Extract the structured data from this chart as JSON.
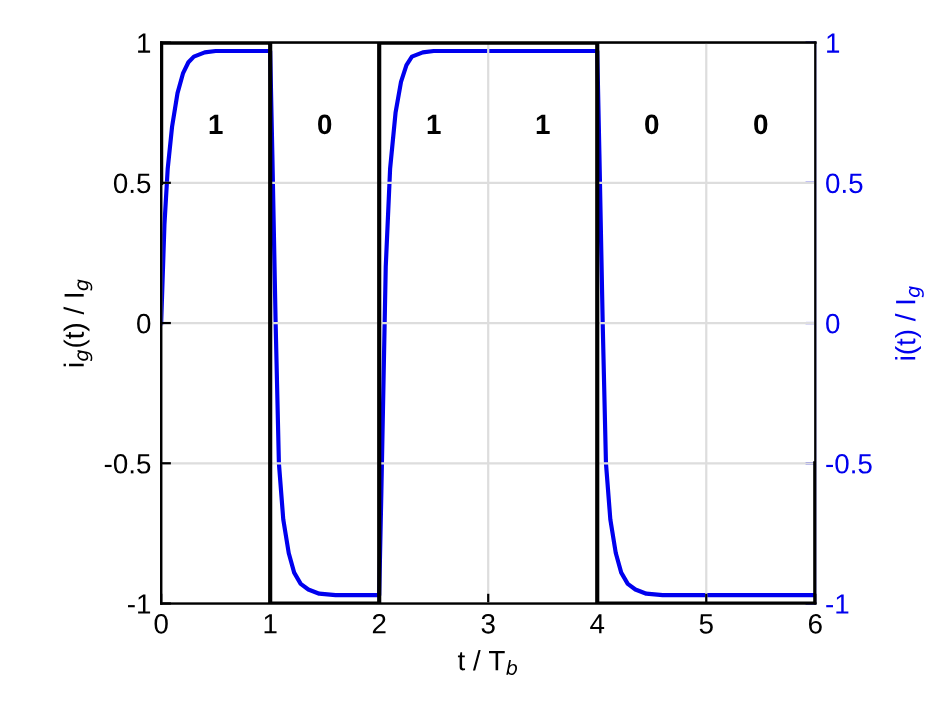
{
  "chart_data": {
    "type": "line",
    "xlabel": "t / T$_{b}$",
    "ylabel": "i$_{g}$(t) / I$_{g}$",
    "y2label": "i(t) / I$_{g}$",
    "xlim": [
      0,
      6
    ],
    "xticks": [
      0,
      1,
      2,
      3,
      4,
      5,
      6
    ],
    "ylim": [
      -1,
      1
    ],
    "yticks": [
      -1,
      -0.5,
      0,
      0.5,
      1
    ],
    "y2lim": [
      -1,
      1
    ],
    "y2ticks": [
      -1,
      -0.5,
      0,
      0.5,
      1
    ],
    "grid": true,
    "marker": "none",
    "line_style": "solid",
    "series": [
      {
        "color": "#000000",
        "x": [
          0,
          0,
          1,
          1,
          2,
          2,
          4,
          4,
          6,
          6
        ],
        "values": [
          0.5,
          1,
          1,
          -1,
          -1,
          1,
          1,
          -1,
          -1,
          -0.5
        ]
      },
      {
        "color": "#0000ee",
        "axis": "y2",
        "x": [
          0,
          0.03,
          0.06,
          0.1,
          0.15,
          0.2,
          0.25,
          0.3,
          0.4,
          0.5,
          0.7,
          1.0,
          1.02,
          1.05,
          1.08,
          1.12,
          1.17,
          1.22,
          1.28,
          1.35,
          1.45,
          1.6,
          1.8,
          2.0,
          2.02,
          2.04,
          2.06,
          2.1,
          2.15,
          2.2,
          2.25,
          2.3,
          2.4,
          2.5,
          2.7,
          4.0,
          4.02,
          4.05,
          4.08,
          4.12,
          4.17,
          4.22,
          4.28,
          4.35,
          4.45,
          4.6,
          4.8,
          6.0
        ],
        "values": [
          0,
          0.35,
          0.55,
          0.7,
          0.82,
          0.89,
          0.93,
          0.95,
          0.965,
          0.97,
          0.97,
          0.97,
          0.6,
          0.0,
          -0.5,
          -0.7,
          -0.82,
          -0.89,
          -0.93,
          -0.95,
          -0.965,
          -0.97,
          -0.97,
          -0.97,
          -0.6,
          -0.2,
          0.2,
          0.55,
          0.75,
          0.86,
          0.92,
          0.95,
          0.965,
          0.97,
          0.97,
          0.97,
          0.6,
          0.0,
          -0.5,
          -0.7,
          -0.82,
          -0.89,
          -0.93,
          -0.95,
          -0.965,
          -0.97,
          -0.97,
          -0.97
        ]
      }
    ],
    "annotations": [
      "1",
      "0",
      "1",
      "1",
      "0",
      "0"
    ]
  }
}
